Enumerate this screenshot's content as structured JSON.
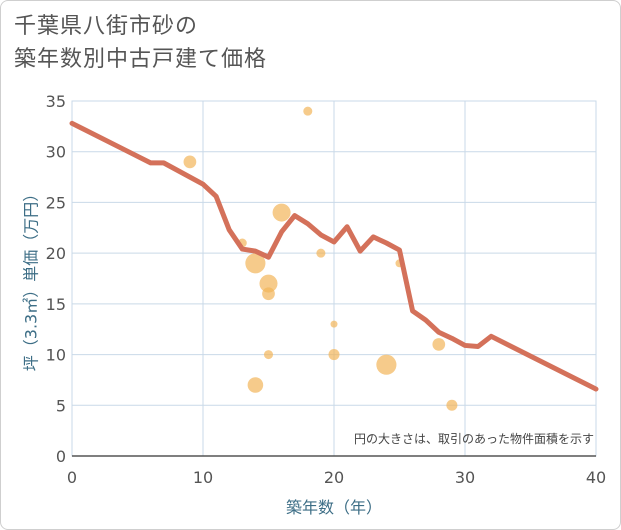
{
  "title_lines": [
    "千葉県八街市砂の",
    "築年数別中古戸建て価格"
  ],
  "chart_data": {
    "type": "scatter",
    "title": "千葉県八街市砂の築年数別中古戸建て価格",
    "xlabel": "築年数（年）",
    "ylabel": "坪（3.3㎡）単価（万円）",
    "xlim": [
      0,
      40
    ],
    "ylim": [
      0,
      35
    ],
    "x_ticks": [
      0,
      10,
      20,
      30,
      40
    ],
    "y_ticks": [
      0,
      5,
      10,
      15,
      20,
      25,
      30,
      35
    ],
    "grid": true,
    "note": "円の大きさは、取引のあった物件面積を示す",
    "colors": {
      "bubble": "#f2b55a",
      "trend": "#d4715a",
      "grid": "#c9d9e8",
      "axis_label": "#3d6e86"
    },
    "bubbles": [
      {
        "x": 9,
        "y": 29,
        "size": 2
      },
      {
        "x": 13,
        "y": 21,
        "size": 1
      },
      {
        "x": 14,
        "y": 19,
        "size": 5
      },
      {
        "x": 14,
        "y": 7,
        "size": 3
      },
      {
        "x": 15,
        "y": 17,
        "size": 4
      },
      {
        "x": 15,
        "y": 16,
        "size": 2
      },
      {
        "x": 15,
        "y": 10,
        "size": 1
      },
      {
        "x": 16,
        "y": 24,
        "size": 4
      },
      {
        "x": 18,
        "y": 34,
        "size": 1
      },
      {
        "x": 19,
        "y": 20,
        "size": 1
      },
      {
        "x": 20,
        "y": 13,
        "size": 0.6
      },
      {
        "x": 20,
        "y": 10,
        "size": 1.5
      },
      {
        "x": 24,
        "y": 9,
        "size": 5
      },
      {
        "x": 25,
        "y": 19,
        "size": 0.8
      },
      {
        "x": 28,
        "y": 11,
        "size": 2
      },
      {
        "x": 29,
        "y": 5,
        "size": 1.5
      }
    ],
    "trend": {
      "x": [
        0,
        6,
        7,
        10,
        11,
        12,
        13,
        14,
        15,
        16,
        17,
        18,
        19,
        20,
        21,
        22,
        23,
        24,
        25,
        26,
        27,
        28,
        29,
        30,
        31,
        32,
        40
      ],
      "y": [
        32.8,
        28.9,
        28.9,
        26.8,
        25.6,
        22.3,
        20.4,
        20.2,
        19.6,
        22.1,
        23.7,
        22.9,
        21.8,
        21.1,
        22.6,
        20.2,
        21.6,
        21.0,
        20.3,
        14.3,
        13.4,
        12.2,
        11.6,
        10.9,
        10.8,
        11.8,
        6.6
      ]
    }
  }
}
